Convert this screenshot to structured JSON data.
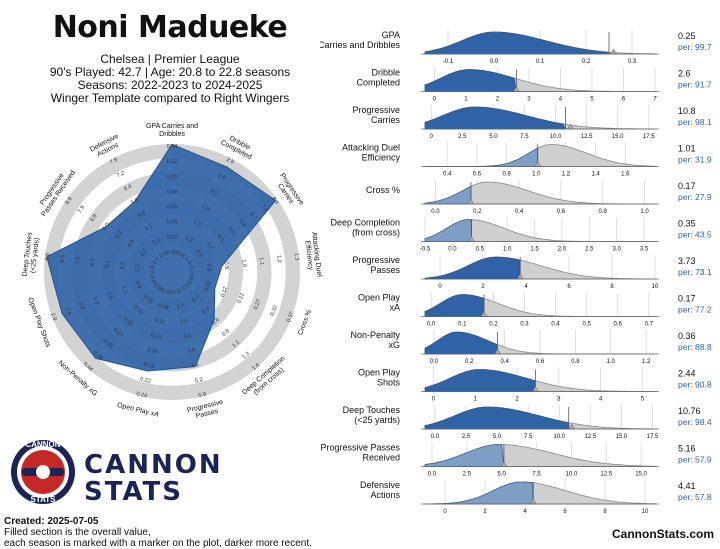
{
  "header": {
    "player": "Noni Madueke",
    "club_line": "Chelsea | Premier League",
    "played_line": "90's Played: 42.7 | Age: 20.8 to 22.8 seasons",
    "seasons_line": "Seasons: 2022-2023 to 2024-2025",
    "template_line": "Winger Template compared to Right Wingers"
  },
  "brand": {
    "name_line1": "CANNON",
    "name_line2": "STATS",
    "badge_top": "CANNON",
    "badge_bottom": "STATS",
    "website": "CannonStats.com"
  },
  "footer": {
    "created": "Created: 2025-07-05",
    "note1": "Filled section is the overall value,",
    "note2": "each season is marked with a marker on the plot, darker more recent."
  },
  "colors": {
    "blue": "#2f63a6",
    "blue_dark": "#22558f",
    "grey": "#c9c9c9",
    "grey_line": "#777777",
    "navy": "#1b2457",
    "red": "#c62828"
  },
  "chart_data": [
    {
      "type": "radar",
      "metrics": [
        {
          "label": "GPA Carries and\nDribbles",
          "percentile": 99.7,
          "ticks": [
            "0.00",
            "0.02",
            "0.04",
            "0.06",
            "0.08",
            "0.10",
            "0.12",
            "0.14"
          ]
        },
        {
          "label": "Dribble\nCompleted",
          "percentile": 91.7,
          "ticks": [
            "0.8",
            "1.2",
            "1.5",
            "1.9",
            "2.2",
            "2.6",
            "2.9"
          ]
        },
        {
          "label": "Progressive\nCarries",
          "percentile": 98.1,
          "ticks": [
            "1.5",
            "2.3",
            "3.2",
            "4.1",
            "5.0",
            "5.8",
            "6.7",
            "7.6",
            "8.4"
          ]
        },
        {
          "label": "Attacking Duel\nEfficiency",
          "percentile": 31.9,
          "ticks": [
            "0.7",
            "0.8",
            "0.9",
            "1.0",
            "1.1",
            "1.2",
            "1.3"
          ]
        },
        {
          "label": "Cross %",
          "percentile": 27.9,
          "ticks": [
            "0.07",
            "0.12",
            "0.17",
            "0.22",
            "0.27",
            "0.32",
            "0.37"
          ]
        },
        {
          "label": "Deep Completion\n(from cross)",
          "percentile": 43.5,
          "ticks": [
            "0.0",
            "0.2",
            "0.4",
            "0.6",
            "0.8",
            "1.1",
            "1.3",
            "1.6"
          ]
        },
        {
          "label": "Progressive\nPasses",
          "percentile": 73.1,
          "ticks": [
            "1.0",
            "1.7",
            "2.4",
            "3.1",
            "3.8",
            "4.5",
            "5.2",
            "5.9"
          ]
        },
        {
          "label": "Open Play xA",
          "percentile": 77.2,
          "ticks": [
            "0.05",
            "0.08",
            "0.11",
            "0.14",
            "0.16",
            "0.19",
            "0.22",
            "0.24"
          ]
        },
        {
          "label": "Non-Penalty xG",
          "percentile": 88.8,
          "ticks": [
            "0.05",
            "0.11",
            "0.16",
            "0.22",
            "0.27",
            "0.33",
            "0.38",
            "0.44"
          ]
        },
        {
          "label": "Open Play Shots",
          "percentile": 90.8,
          "ticks": [
            "0.4",
            "0.8",
            "1.1",
            "1.5",
            "1.8",
            "2.2",
            "2.5",
            "2.9"
          ]
        },
        {
          "label": "Deep Touches\n(<25 yards)",
          "percentile": 98.4,
          "ticks": [
            "1.6",
            "2.7",
            "3.9",
            "5.1",
            "6.3",
            "7.4",
            "8.6",
            "9.8"
          ]
        },
        {
          "label": "Progressive\nPasses Received",
          "percentile": 57.9,
          "ticks": [
            "2.1",
            "3.1",
            "4.0",
            "5.0",
            "6.0",
            "6.9",
            "7.9",
            "8.8"
          ]
        },
        {
          "label": "Defensive\nActions",
          "percentile": 57.8,
          "ticks": [
            "2.5",
            "3.3",
            "4.1",
            "4.9",
            "5.6",
            "6.4",
            "7.2",
            "7.9"
          ]
        }
      ]
    },
    {
      "type": "density",
      "rows": [
        {
          "label": "GPA\nCarries and Dribbles",
          "value": "0.25",
          "percentile": "per: 99.7",
          "v": 0.25,
          "xlim": [
            -0.15,
            0.35
          ],
          "ticks": [
            -0.1,
            0.0,
            0.1,
            0.2,
            0.3
          ],
          "tick_labels": [
            "-0.1",
            "0.0",
            "0.1",
            "0.2",
            "0.3"
          ],
          "mode": 0.0,
          "spread": 0.07,
          "markers": [
            0.26
          ]
        },
        {
          "label": "Dribble\nCompleted",
          "value": "2.6",
          "percentile": "per: 91.7",
          "v": 2.6,
          "xlim": [
            -0.3,
            7.0
          ],
          "ticks": [
            0,
            1,
            2,
            3,
            4,
            5,
            6,
            7
          ],
          "tick_labels": [
            "0",
            "1",
            "2",
            "3",
            "4",
            "5",
            "6",
            "7"
          ],
          "mode": 1.1,
          "spread": 0.9,
          "markers": [
            2.6
          ]
        },
        {
          "label": "Progressive\nCarries",
          "value": "10.8",
          "percentile": "per: 98.1",
          "v": 10.8,
          "xlim": [
            -0.5,
            18.0
          ],
          "ticks": [
            0,
            2.5,
            5,
            7.5,
            10,
            12.5,
            15,
            17.5
          ],
          "tick_labels": [
            "0",
            "2.5",
            "5.0",
            "7.5",
            "10.0",
            "12.5",
            "15.0",
            "17.5"
          ],
          "mode": 3.5,
          "spread": 2.6,
          "markers": [
            11.2
          ]
        },
        {
          "label": "Attacking Duel\nEfficiency",
          "value": "1.01",
          "percentile": "per: 31.9",
          "v": 1.01,
          "xlim": [
            0.25,
            1.8
          ],
          "ticks": [
            0.4,
            0.6,
            0.8,
            1.0,
            1.2,
            1.4,
            1.6
          ],
          "tick_labels": [
            "0.4",
            "0.6",
            "0.8",
            "1.0",
            "1.2",
            "1.4",
            "1.6"
          ],
          "mode": 1.1,
          "spread": 0.15,
          "markers": [
            1.01
          ]
        },
        {
          "label": "Cross %",
          "value": "0.17",
          "percentile": "per: 27.9",
          "v": 0.17,
          "xlim": [
            -0.05,
            1.05
          ],
          "ticks": [
            0.0,
            0.2,
            0.4,
            0.6,
            0.8,
            1.0
          ],
          "tick_labels": [
            "0.0",
            "0.2",
            "0.4",
            "0.6",
            "0.8",
            "1.0"
          ],
          "mode": 0.25,
          "spread": 0.12,
          "markers": [
            0.17
          ]
        },
        {
          "label": "Deep Completion\n(from cross)",
          "value": "0.35",
          "percentile": "per: 43.5",
          "v": 0.35,
          "xlim": [
            -0.5,
            3.7
          ],
          "ticks": [
            -0.5,
            0.0,
            0.5,
            1.0,
            1.5,
            2.0,
            2.5,
            3.0,
            3.5
          ],
          "tick_labels": [
            "-0.5",
            "0.0",
            "0.5",
            "1.0",
            "1.5",
            "2.0",
            "2.5",
            "3.0",
            "3.5"
          ],
          "mode": 0.3,
          "spread": 0.4,
          "markers": [
            0.35
          ]
        },
        {
          "label": "Progressive\nPasses",
          "value": "3.73",
          "percentile": "per: 73.1",
          "v": 3.73,
          "xlim": [
            -0.7,
            10.0
          ],
          "ticks": [
            0,
            2,
            4,
            6,
            8,
            10
          ],
          "tick_labels": [
            "0",
            "2",
            "4",
            "6",
            "8",
            "10"
          ],
          "mode": 2.6,
          "spread": 1.3,
          "markers": [
            3.73
          ]
        },
        {
          "label": "Open Play\nxA",
          "value": "0.17",
          "percentile": "per: 77.2",
          "v": 0.17,
          "xlim": [
            -0.02,
            0.72
          ],
          "ticks": [
            0.0,
            0.1,
            0.2,
            0.3,
            0.4,
            0.5,
            0.6,
            0.7
          ],
          "tick_labels": [
            "0.0",
            "0.1",
            "0.2",
            "0.3",
            "0.4",
            "0.5",
            "0.6",
            "0.7"
          ],
          "mode": 0.1,
          "spread": 0.07,
          "markers": [
            0.17
          ]
        },
        {
          "label": "Non-Penalty\nxG",
          "value": "0.36",
          "percentile": "per: 88.8",
          "v": 0.36,
          "xlim": [
            -0.05,
            1.25
          ],
          "ticks": [
            0.0,
            0.2,
            0.4,
            0.6,
            0.8,
            1.0,
            1.2
          ],
          "tick_labels": [
            "0.0",
            "0.2",
            "0.4",
            "0.6",
            "0.8",
            "1.0",
            "1.2"
          ],
          "mode": 0.13,
          "spread": 0.11,
          "markers": [
            0.36
          ]
        },
        {
          "label": "Open Play\nShots",
          "value": "2.44",
          "percentile": "per: 90.8",
          "v": 2.44,
          "xlim": [
            -0.2,
            5.3
          ],
          "ticks": [
            0,
            1,
            2,
            3,
            4,
            5
          ],
          "tick_labels": [
            "0",
            "1",
            "2",
            "3",
            "4",
            "5"
          ],
          "mode": 1.1,
          "spread": 0.7,
          "markers": [
            2.44
          ]
        },
        {
          "label": "Deep Touches\n(<25 yards)",
          "value": "10.76",
          "percentile": "per: 98.4",
          "v": 10.76,
          "xlim": [
            -0.8,
            17.7
          ],
          "ticks": [
            0,
            2.5,
            5,
            7.5,
            10,
            12.5,
            15,
            17.5
          ],
          "tick_labels": [
            "0.0",
            "2.5",
            "5.0",
            "7.5",
            "10.0",
            "12.5",
            "15.0",
            "17.5"
          ],
          "mode": 4.2,
          "spread": 2.6,
          "markers": [
            11.0
          ]
        },
        {
          "label": "Progressive Passes\nReceived",
          "value": "5.16",
          "percentile": "per: 57.9",
          "v": 5.16,
          "xlim": [
            -0.5,
            16.0
          ],
          "ticks": [
            0,
            2.5,
            5,
            7.5,
            10,
            12.5,
            15
          ],
          "tick_labels": [
            "0.0",
            "2.5",
            "5.0",
            "7.5",
            "10.0",
            "12.5",
            "15.0"
          ],
          "mode": 4.8,
          "spread": 2.4,
          "markers": [
            5.16
          ]
        },
        {
          "label": "Defensive\nActions",
          "value": "4.41",
          "percentile": "per: 57.8",
          "v": 4.41,
          "xlim": [
            -1.0,
            10.5
          ],
          "ticks": [
            0,
            2,
            4,
            6,
            8,
            10
          ],
          "tick_labels": [
            "0",
            "2",
            "4",
            "6",
            "8",
            "10"
          ],
          "mode": 3.8,
          "spread": 1.4,
          "markers": [
            4.41
          ]
        }
      ]
    }
  ]
}
